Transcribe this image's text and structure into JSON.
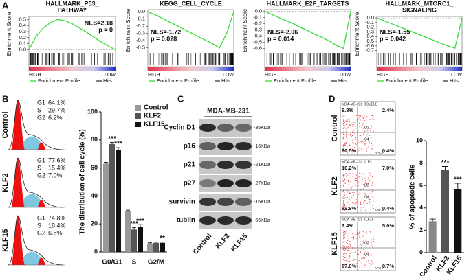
{
  "panel_labels": [
    "A",
    "B",
    "C",
    "D"
  ],
  "chart_data": [
    {
      "type": "line",
      "title": [
        "HALLMARK_P53_",
        "PATHWAY"
      ],
      "ylabel": "Enrichment Score",
      "annotations": [
        "NES=2.18",
        "p = 0"
      ],
      "series": [
        {
          "name": "Enrichment Profile",
          "color": "#33dd33",
          "values": [
            0,
            0.22,
            0.36,
            0.45,
            0.5,
            0.48,
            0.43,
            0.36,
            0.29,
            0.21,
            0.13,
            0.06,
            0
          ]
        }
      ],
      "ylim": [
        -0.03,
        0.55
      ],
      "yticks": [
        {
          "value": 0,
          "label": "0.0"
        },
        0.1,
        0.2,
        0.3,
        0.4,
        0.5
      ],
      "hits_name": "Hits",
      "hits_color": "#000000",
      "gradient_labels": [
        "HIGH",
        "LOW"
      ]
    },
    {
      "type": "line",
      "title": [
        "KEGG_CELL_CYCLE"
      ],
      "ylabel": "Enrichment Score",
      "annotations": [
        "NES=-1.72",
        "p = 0.028"
      ],
      "series": [
        {
          "name": "Enrichment Profile",
          "color": "#33dd33",
          "values": [
            0,
            -0.04,
            -0.09,
            -0.14,
            -0.19,
            -0.24,
            -0.29,
            -0.34,
            -0.39,
            -0.44,
            -0.5,
            -0.3,
            0
          ]
        }
      ],
      "ylim": [
        -0.55,
        0.03
      ],
      "yticks": [
        {
          "value": 0,
          "label": "0.0"
        },
        -0.1,
        -0.2,
        -0.3,
        -0.4,
        -0.5
      ],
      "hits_name": "Hits",
      "hits_color": "#000000",
      "gradient_labels": [
        "HIGH",
        "LOW"
      ]
    },
    {
      "type": "line",
      "title": [
        "HALLMARK_E2F_TARGETS"
      ],
      "ylabel": "Enrichment Score",
      "annotations": [
        "NES=-2.06",
        "p = 0.014"
      ],
      "series": [
        {
          "name": "Enrichment Profile",
          "color": "#33dd33",
          "values": [
            0,
            -0.05,
            -0.1,
            -0.15,
            -0.2,
            -0.26,
            -0.31,
            -0.37,
            -0.42,
            -0.48,
            -0.55,
            -0.6,
            0
          ]
        }
      ],
      "ylim": [
        -0.65,
        0.03
      ],
      "yticks": [
        {
          "value": 0,
          "label": "0.0"
        },
        -0.1,
        -0.2,
        -0.3,
        -0.4,
        -0.5,
        -0.6
      ],
      "hits_name": "Hits",
      "hits_color": "#000000",
      "gradient_labels": [
        "HIGH",
        "LOW"
      ]
    },
    {
      "type": "line",
      "title": [
        "HALLMARK_MTORC1_",
        "SIGNALING"
      ],
      "ylabel": "Enrichment Score",
      "annotations": [
        "NES=-1.55",
        "p = 0.042"
      ],
      "series": [
        {
          "name": "Enrichment Profile",
          "color": "#33dd33",
          "values": [
            0,
            -0.06,
            -0.12,
            -0.18,
            -0.24,
            -0.3,
            -0.36,
            -0.42,
            -0.48,
            -0.54,
            -0.6,
            -0.65,
            0
          ]
        }
      ],
      "ylim": [
        -0.72,
        0.03
      ],
      "yticks": [
        {
          "value": 0,
          "label": "0.0"
        },
        -0.1,
        -0.2,
        -0.3,
        -0.4,
        -0.5,
        -0.6,
        -0.7
      ],
      "hits_name": "Hits",
      "hits_color": "#000000",
      "gradient_labels": [
        "HIGH",
        "LOW"
      ]
    },
    {
      "type": "bar",
      "ylabel": "The distribution of cell cycle (%)",
      "categories": [
        "G0/G1",
        "S",
        "G2/M"
      ],
      "series": [
        {
          "name": "Control",
          "color": "#999999",
          "values": [
            63,
            29,
            6
          ],
          "errors": [
            1,
            0.8,
            0.5
          ]
        },
        {
          "name": "KLF2",
          "color": "#555555",
          "values": [
            77,
            16,
            6.5
          ],
          "errors": [
            1.2,
            1.5,
            0.6
          ],
          "annotations": [
            "***",
            "***",
            null
          ]
        },
        {
          "name": "KLF15",
          "color": "#111111",
          "values": [
            73,
            18,
            6.5
          ],
          "errors": [
            1.5,
            1.5,
            0.6
          ],
          "annotations": [
            "***",
            "***",
            "**"
          ]
        }
      ],
      "ylim": [
        0,
        100
      ],
      "yticks": [
        0,
        20,
        40,
        60,
        80,
        100
      ]
    },
    {
      "type": "bar",
      "ylabel": "% of apoptotic cells",
      "categories": [
        "Control",
        "KLF2",
        "KLF15"
      ],
      "series": [
        {
          "name": "apoptotic",
          "colors": [
            "#888888",
            "#555555",
            "#111111"
          ],
          "values": [
            2.8,
            7.4,
            5.7
          ],
          "errors": [
            0.2,
            0.3,
            0.5
          ],
          "annotations": [
            null,
            "***",
            "***"
          ]
        }
      ],
      "ylim": [
        0,
        10
      ],
      "yticks": [
        0,
        2,
        4,
        6,
        8,
        10
      ]
    }
  ],
  "cell_cycle": [
    {
      "label": "Control",
      "phases": [
        [
          "G1",
          "64.1%"
        ],
        [
          "S",
          "29.7%"
        ],
        [
          "G2",
          "6.2%"
        ]
      ]
    },
    {
      "label": "KLF2",
      "phases": [
        [
          "G1",
          "77.6%"
        ],
        [
          "S",
          "15.4%"
        ],
        [
          "G2",
          "7.0%"
        ]
      ]
    },
    {
      "label": "KLF15",
      "phases": [
        [
          "G1",
          "74.8%"
        ],
        [
          "S",
          "18.4%"
        ],
        [
          "G2",
          "6.8%"
        ]
      ]
    }
  ],
  "western_blot": {
    "title": "MDA-MB-231",
    "lanes": [
      "Control",
      "KLF2",
      "KLF15"
    ],
    "proteins": [
      {
        "name": "Cyclin D1",
        "size": "-35KDa"
      },
      {
        "name": "p16",
        "size": "-16KDa"
      },
      {
        "name": "p21",
        "size": "-21KDa"
      },
      {
        "name": "p27",
        "size": "-27KDa"
      },
      {
        "name": "survivin",
        "size": "-16KDa"
      },
      {
        "name": "tublin",
        "size": "-55KDa"
      }
    ]
  },
  "apoptosis_flow": {
    "quadrant_names": [
      "Q2",
      "Q4"
    ],
    "x_axis": "APC-A",
    "plots": [
      {
        "label": "Control",
        "header": "MDA-MB-231 DOUBLE",
        "quadrants": [
          "6.8%",
          "2.4%",
          "90.5%",
          "0.4%"
        ]
      },
      {
        "label": "KLF2",
        "header": "MDA-MB-231 KLF2",
        "quadrants": [
          "10.2%",
          "7.0%",
          "82.9%",
          "0.4%"
        ]
      },
      {
        "label": "KLF15",
        "header": "MDA-MB-231 KLF15",
        "quadrants": [
          "7.4%",
          "5.0%",
          "87.0%",
          "0.7%"
        ]
      }
    ]
  }
}
